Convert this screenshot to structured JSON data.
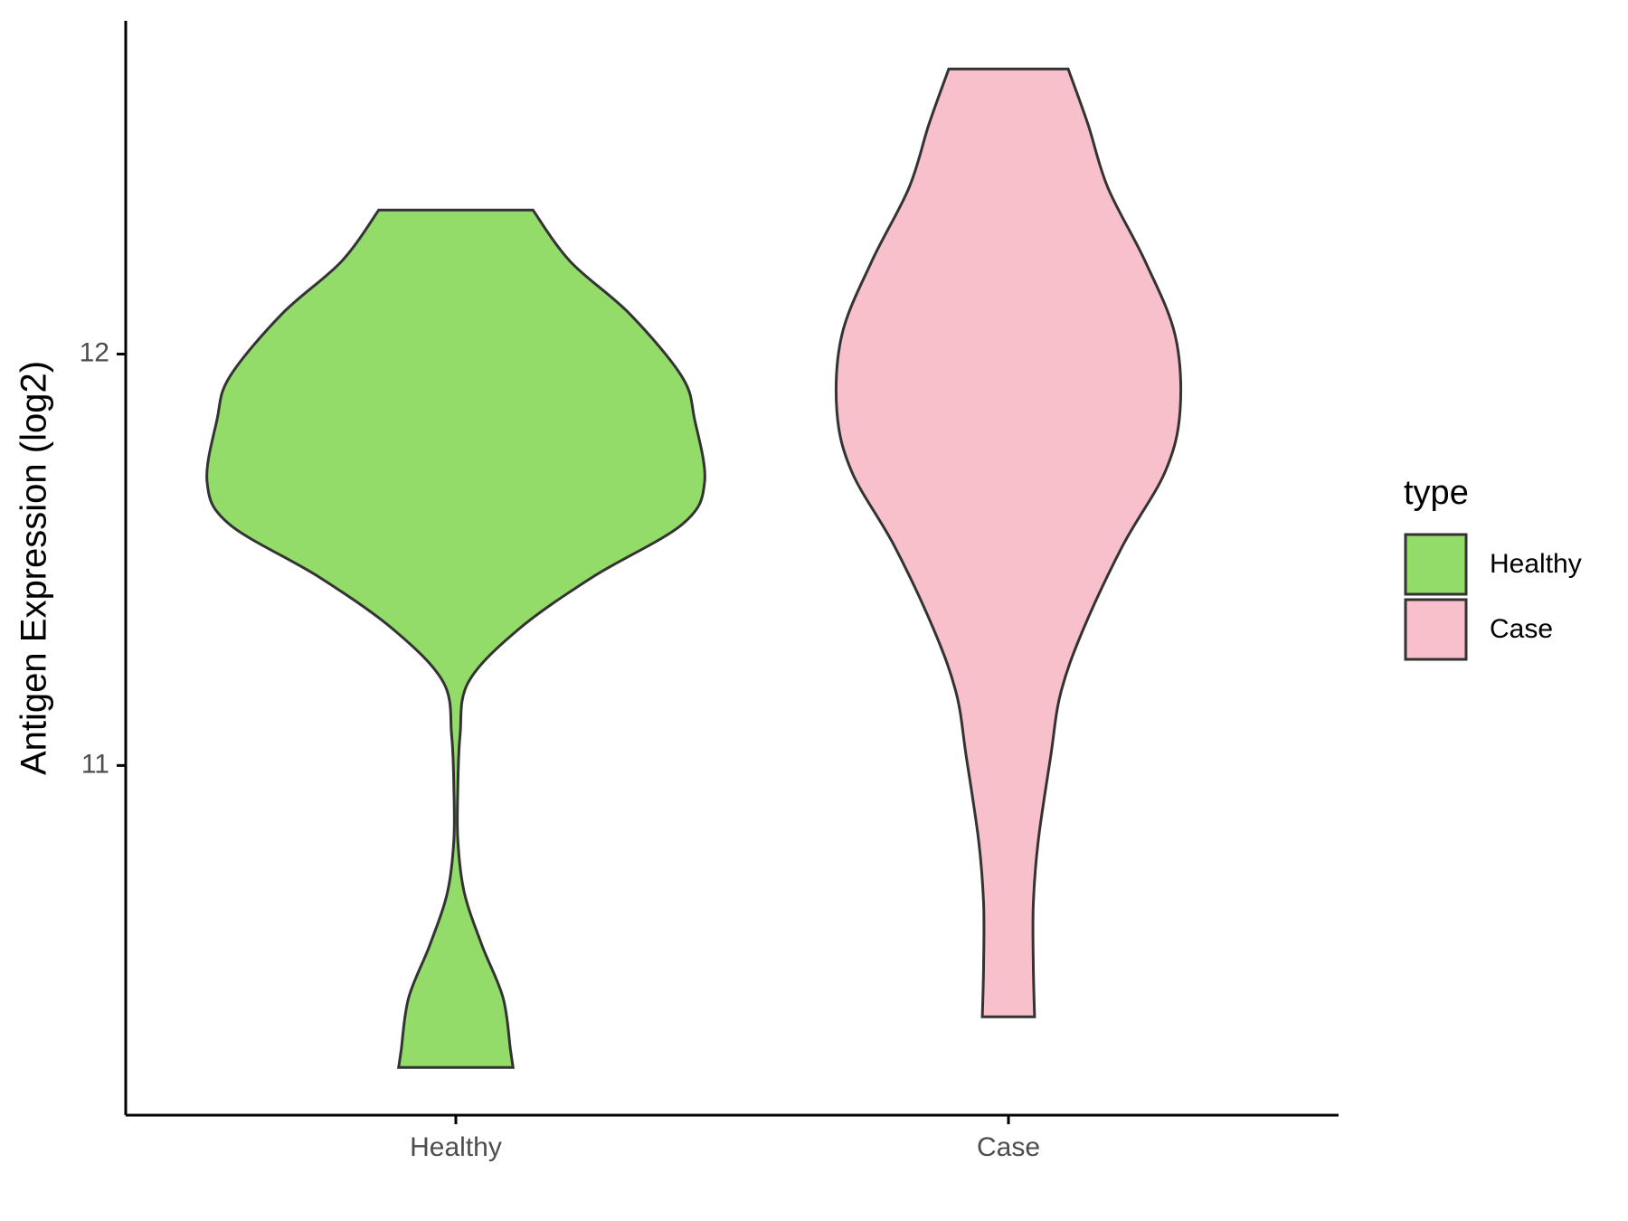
{
  "chart_data": {
    "type": "violin",
    "ylabel": "Antigen Expression (log2)",
    "legend_title": "type",
    "categories": [
      "Healthy",
      "Case"
    ],
    "ylim": [
      10.15,
      12.81
    ],
    "yticks": [
      11,
      12
    ],
    "series": [
      {
        "name": "Healthy",
        "color": "#93dc6a",
        "y": [
          12.35,
          12.225,
          12.097,
          11.944,
          11.841,
          11.688,
          11.586,
          11.458,
          11.33,
          11.202,
          11.074,
          10.946,
          10.818,
          10.691,
          10.563,
          10.435,
          10.307,
          10.266
        ],
        "widths": [
          0.31,
          0.46,
          0.7,
          0.91,
          0.96,
          1.0,
          0.91,
          0.55,
          0.25,
          0.05,
          0.017,
          0.008,
          0.008,
          0.034,
          0.105,
          0.19,
          0.22,
          0.23
        ]
      },
      {
        "name": "Case",
        "color": "#f7c0cb",
        "y": [
          12.693,
          12.558,
          12.404,
          12.225,
          12.046,
          11.862,
          11.714,
          11.535,
          11.33,
          11.176,
          11.023,
          10.818,
          10.665,
          10.512,
          10.389
        ],
        "widths": [
          0.24,
          0.32,
          0.4,
          0.55,
          0.67,
          0.69,
          0.63,
          0.46,
          0.3,
          0.21,
          0.17,
          0.12,
          0.1,
          0.1,
          0.105
        ]
      }
    ]
  }
}
